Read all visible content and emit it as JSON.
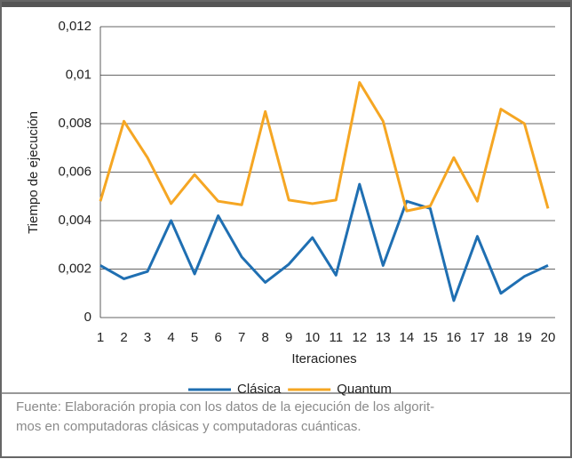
{
  "chart_data": {
    "type": "line",
    "y_label": "Tiempo de ejecución",
    "x_label": "Iteraciones",
    "categories": [
      "1",
      "2",
      "3",
      "4",
      "5",
      "6",
      "7",
      "8",
      "9",
      "10",
      "11",
      "12",
      "13",
      "14",
      "15",
      "16",
      "17",
      "18",
      "19",
      "20"
    ],
    "series": [
      {
        "name": "Clásica",
        "color": "#1f6fb2",
        "values": [
          0.00215,
          0.0016,
          0.0019,
          0.004,
          0.0018,
          0.0042,
          0.0025,
          0.00145,
          0.0022,
          0.0033,
          0.00175,
          0.0055,
          0.00215,
          0.0048,
          0.0045,
          0.0007,
          0.00335,
          0.001,
          0.0017,
          0.00215
        ]
      },
      {
        "name": "Quantum",
        "color": "#f5a623",
        "values": [
          0.0048,
          0.0081,
          0.0066,
          0.0047,
          0.0059,
          0.0048,
          0.00465,
          0.0085,
          0.00485,
          0.0047,
          0.00485,
          0.0097,
          0.0081,
          0.0044,
          0.0046,
          0.0066,
          0.0048,
          0.0086,
          0.008,
          0.0045
        ]
      }
    ],
    "ylim": [
      0,
      0.012
    ],
    "yticks": [
      0,
      {
        "value": 0.002,
        "label": "0,002"
      },
      {
        "value": 0.004,
        "label": "0,004"
      },
      {
        "value": 0.006,
        "label": "0,006"
      },
      {
        "value": 0.008,
        "label": "0,008"
      },
      {
        "value": 0.01,
        "label": "0,01"
      },
      {
        "value": 0.012,
        "label": "0,012"
      }
    ],
    "grid": true,
    "legend": "bottom"
  },
  "footer": {
    "lines": [
      "Fuente: Elaboración propia con los datos de la ejecución de los algorit-",
      "mos en computadoras clásicas y computadoras cuánticas."
    ]
  }
}
